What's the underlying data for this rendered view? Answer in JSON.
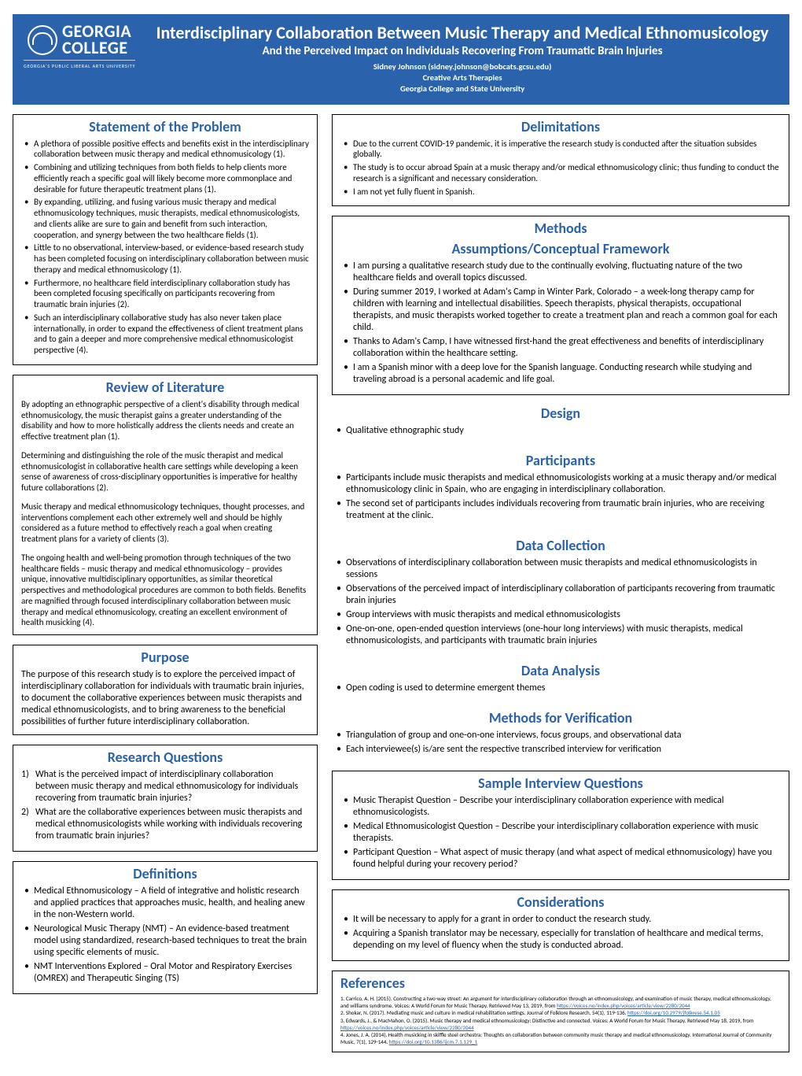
{
  "colors": {
    "accent": "#2a62ab",
    "text": "#000000",
    "bg": "#ffffff"
  },
  "header": {
    "logo_line1": "GEORGIA",
    "logo_line2": "COLLEGE",
    "logo_tagline": "GEORGIA'S PUBLIC LIBERAL ARTS UNIVERSITY",
    "title": "Interdisciplinary Collaboration Between Music Therapy and Medical Ethnomusicology",
    "subtitle": "And the Perceived Impact on Individuals Recovering From Traumatic Brain Injuries",
    "author": "Sidney Johnson (sidney.johnson@bobcats.gcsu.edu)",
    "dept": "Creative Arts Therapies",
    "inst": "Georgia College and State University"
  },
  "left": {
    "problem": {
      "title": "Statement of the Problem",
      "items": [
        "A plethora of possible positive effects and benefits exist in the interdisciplinary collaboration between music therapy and medical ethnomusicology (1).",
        "Combining and utilizing techniques from both fields to help clients more efficiently reach a specific goal will likely become more commonplace and desirable for future therapeutic treatment plans (1).",
        "By expanding, utilizing, and fusing various music therapy and medical ethnomusicology techniques, music therapists, medical ethnomusicologists, and clients alike are sure to gain and benefit from such interaction, cooperation, and synergy between the two healthcare fields (1).",
        "Little to no observational, interview-based, or evidence-based research study has been completed focusing on interdisciplinary collaboration between music therapy and medical ethnomusicology (1).",
        "Furthermore, no healthcare field interdisciplinary collaboration study has been completed focusing specifically on participants recovering from traumatic brain injuries (2).",
        "Such an interdisciplinary collaborative study has also never taken place internationally, in order to expand the effectiveness of client treatment plans and to gain a deeper and more comprehensive medical ethnomusicologist perspective (4)."
      ]
    },
    "lit": {
      "title": "Review of Literature",
      "paras": [
        "By adopting an ethnographic perspective of a client's disability through medical ethnomusicology, the music therapist gains a greater understanding of the disability and how to more holistically address the clients needs and create an effective treatment plan (1).",
        "Determining and distinguishing the role of the music therapist and medical ethnomusicologist in collaborative health care settings while developing a keen sense of awareness of cross-disciplinary opportunities is imperative for healthy future collaborations (2).",
        "Music therapy and medical ethnomusicology techniques, thought processes, and interventions complement each other extremely well and should be highly considered as a future method to effectively reach a goal when creating treatment plans for a variety of clients (3).",
        "The ongoing health and well-being promotion through techniques of the two healthcare fields – music therapy and medical ethnomusicology – provides unique, innovative multidisciplinary opportunities, as similar theoretical perspectives and methodological procedures are common to both fields. Benefits are magnified through focused interdisciplinary collaboration between music therapy and medical ethnomusicology, creating an excellent environment of health musicking (4)."
      ]
    },
    "purpose": {
      "title": "Purpose",
      "text": "The purpose of this research study is to explore the perceived impact of interdisciplinary collaboration for individuals with traumatic brain injuries, to document the collaborative experiences between music therapists and medical ethnomusicologists, and to bring awareness to the beneficial possibilities of further future interdisciplinary collaboration."
    },
    "rq": {
      "title": "Research Questions",
      "items": [
        "What is the perceived impact of interdisciplinary collaboration between music therapy and medical ethnomusicology for individuals recovering from traumatic brain injuries?",
        "What are the collaborative experiences between music therapists and medical ethnomusicologists while working with individuals recovering from traumatic brain injuries?"
      ]
    },
    "defs": {
      "title": "Definitions",
      "items": [
        "Medical Ethnomusicology – A field of integrative and holistic research and applied practices that approaches music, health, and healing anew in the non-Western world.",
        "Neurological Music Therapy (NMT) –  An evidence-based treatment model using standardized, research-based techniques to treat the brain using specific elements of music.",
        "NMT Interventions Explored – Oral Motor and Respiratory Exercises (OMREX) and Therapeutic Singing (TS)"
      ]
    }
  },
  "right": {
    "delim": {
      "title": "Delimitations",
      "items": [
        "Due to the current COVID-19 pandemic, it is imperative the research study is conducted after the situation subsides globally.",
        "The study is to occur abroad Spain at a music therapy and/or medical ethnomusicology clinic; thus funding to conduct the research is a significant and necessary consideration.",
        "I am not yet fully fluent in Spanish."
      ]
    },
    "methods_label": "Methods",
    "assumptions": {
      "title": "Assumptions/Conceptual Framework",
      "items": [
        "I am pursing a qualitative research study due to the continually evolving, fluctuating nature of the two healthcare fields and overall topics discussed.",
        "During summer 2019, I worked at Adam's Camp in Winter Park, Colorado – a week-long therapy camp for children with learning and intellectual disabilities. Speech therapists, physical therapists, occupational therapists, and music therapists worked together to create a treatment plan and reach a common goal for each child.",
        "Thanks to Adam's Camp, I have witnessed first-hand the great effectiveness and benefits of interdisciplinary collaboration within the healthcare setting.",
        "I am a Spanish minor with a deep love for the Spanish language. Conducting research while studying and traveling abroad is a personal academic and life goal."
      ]
    },
    "design": {
      "title": "Design",
      "items": [
        "Qualitative ethnographic study"
      ]
    },
    "participants": {
      "title": "Participants",
      "items": [
        "Participants include music therapists and medical ethnomusicologists working at a music therapy and/or medical ethnomusicology clinic in Spain, who are engaging in interdisciplinary collaboration.",
        "The second set of participants includes individuals recovering from traumatic brain injuries, who are receiving treatment at the clinic."
      ]
    },
    "datacollection": {
      "title": "Data Collection",
      "items": [
        "Observations of interdisciplinary collaboration between music therapists and medical ethnomusicologists in sessions",
        "Observations of the perceived impact of interdisciplinary collaboration of participants recovering from traumatic brain injuries",
        "Group interviews with music therapists and medical ethnomusicologists",
        "One-on-one, open-ended question interviews (one-hour long interviews) with music therapists, medical ethnomusicologists, and participants with traumatic brain injuries"
      ]
    },
    "analysis": {
      "title": "Data Analysis",
      "items": [
        "Open coding is used to determine emergent themes"
      ]
    },
    "verification": {
      "title": "Methods for Verification",
      "items": [
        "Triangulation of group and one-on-one interviews, focus groups, and observational data",
        "Each interviewee(s) is/are sent the respective transcribed interview for verification"
      ]
    },
    "sampleq": {
      "title": "Sample Interview Questions",
      "items": [
        "Music Therapist Question – Describe your interdisciplinary collaboration experience with medical ethnomusicologists.",
        "Medical Ethnomusicologist Question – Describe your interdisciplinary collaboration experience with music therapists.",
        "Participant Question – What aspect of music therapy (and what aspect of medical ethnomusicology) have you found helpful during your recovery period?"
      ]
    },
    "considerations": {
      "title": "Considerations",
      "items": [
        "It will be necessary to apply for a grant in order to conduct the research study.",
        "Acquiring a Spanish translator may be necessary, especially for translation of healthcare and medical terms, depending on my level of fluency when the study is conducted abroad."
      ]
    },
    "references": {
      "title": "References",
      "items": [
        "1. Carrico, A. H. (2015). Constructing a two-way street: An argument for interdisciplinary collaboration through an ethnomusicology, and examination of music therapy, medical ethnomusicology, and williams syndrome. Voices: A World Forum for Music Therapy. Retrieved May 13, 2019, from ",
        "2. Shokar, N. (2017). Mediating music and culture in medical rehabilitation settings. Journal of Folklore Research, 54(1), 119-136. ",
        "3. Edwards, J., & MacMahon, O. (2015). Music therapy and medical ethnomusicology: Distinctive and connected. Voices: A World Forum for Music Therapy. Retrieved May 18, 2019, from ",
        "4. Jones, J. A. (2014). Health musicking in skiffle steel orchestra: Thoughts on collaboration between community music therapy and medical ethnomusicology. International Journal of Community Music, 7(1), 129-144. "
      ],
      "links": [
        "https://voices.no/index.php/voices/article/view/2280/2044",
        "https://doi.org/10.2979/jfolkrese.54.1.05",
        "https://voices.no/index.php/voices/article/view/2280/2044",
        "https://doi.org/10.1386/ijcm.7.1.129_1"
      ]
    }
  }
}
